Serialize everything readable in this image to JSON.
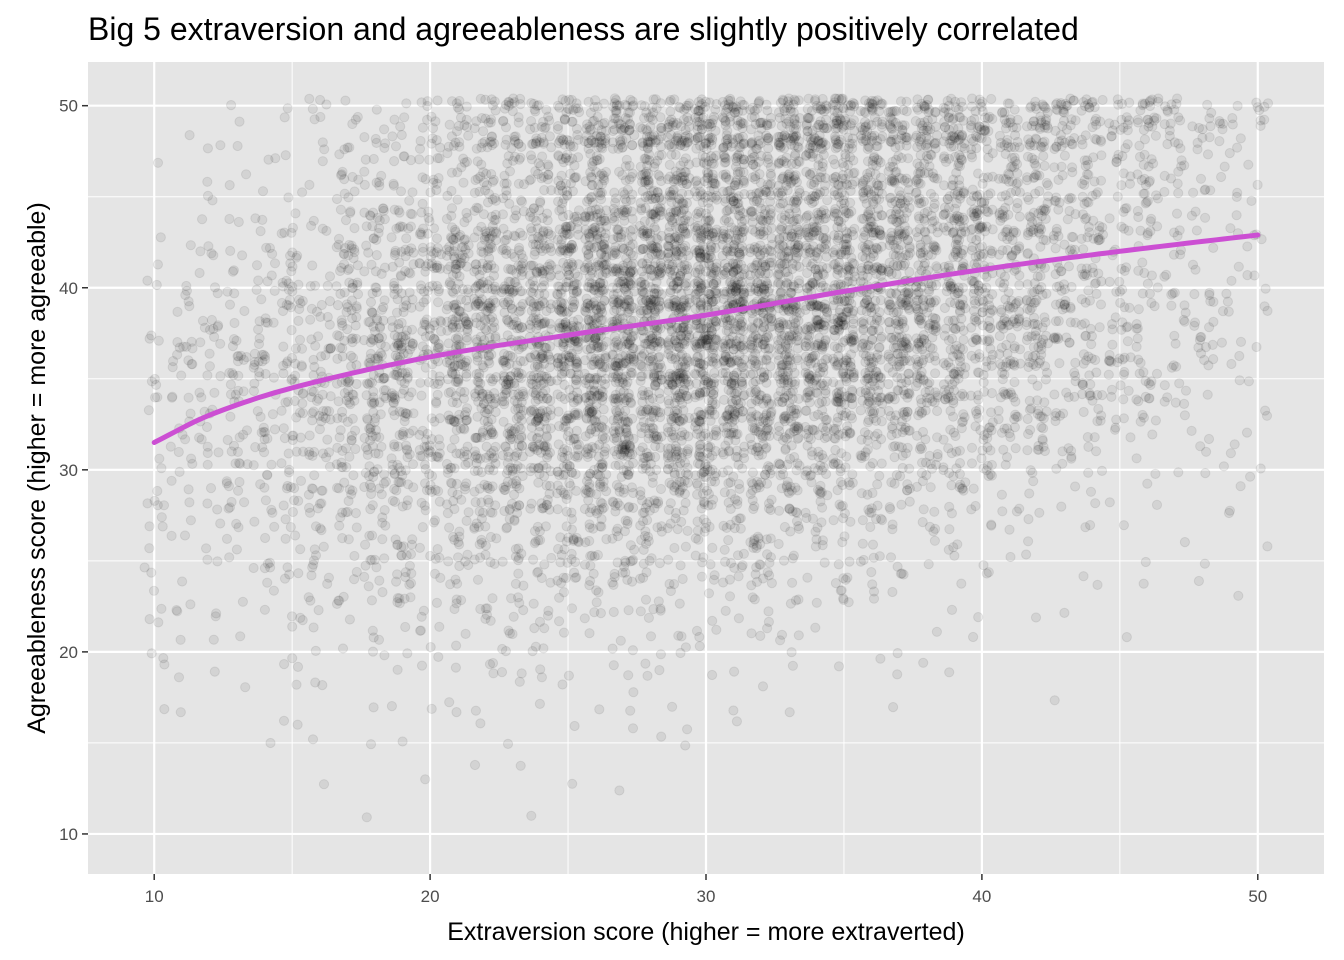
{
  "chart_data": {
    "type": "scatter",
    "title": "Big 5 extraversion and agreeableness are slightly positively correlated",
    "xlabel": "Extraversion score (higher = more extraverted)",
    "ylabel": "Agreeableness score (higher = more agreeable)",
    "xlim": [
      7.6,
      52.4
    ],
    "ylim": [
      7.8,
      52.4
    ],
    "x_ticks": [
      10,
      20,
      30,
      40,
      50
    ],
    "y_ticks": [
      10,
      20,
      30,
      40,
      50
    ],
    "grid": true,
    "legend": "none",
    "colors": {
      "panel_background": "#e5e5e5",
      "grid": "#ffffff",
      "points": "#000000",
      "trend_line": "#cc4fd3"
    },
    "point_opacity": 0.08,
    "point_count_approx": 9000,
    "points_description_values": {
      "x_range": [
        10,
        50
      ],
      "y_range": [
        10,
        50
      ],
      "densest_region": {
        "x": [
          22,
          40
        ],
        "y": [
          30,
          48
        ]
      }
    },
    "trend_line": {
      "method": "smooth",
      "x": [
        10,
        12,
        15,
        20,
        25,
        30,
        35,
        40,
        45,
        50
      ],
      "y": [
        31.5,
        33.0,
        34.5,
        36.2,
        37.4,
        38.5,
        39.8,
        41.0,
        42.0,
        42.9
      ]
    }
  }
}
